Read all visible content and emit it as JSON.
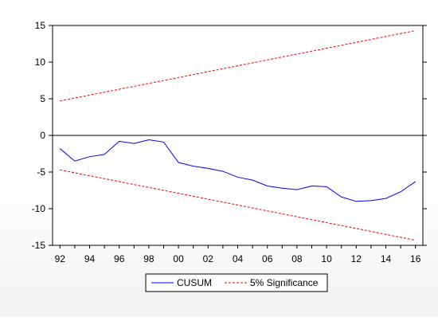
{
  "chart_data": {
    "type": "line",
    "x": [
      1992,
      1993,
      1994,
      1995,
      1996,
      1997,
      1998,
      1999,
      2000,
      2001,
      2002,
      2003,
      2004,
      2005,
      2006,
      2007,
      2008,
      2009,
      2010,
      2011,
      2012,
      2013,
      2014,
      2015,
      2016
    ],
    "xticks": [
      1992,
      1994,
      1996,
      1998,
      2000,
      2002,
      2004,
      2006,
      2008,
      2010,
      2012,
      2014,
      2016
    ],
    "xtick_labels": [
      "92",
      "94",
      "96",
      "98",
      "00",
      "02",
      "04",
      "06",
      "08",
      "10",
      "12",
      "14",
      "16"
    ],
    "xlim": [
      1991.5,
      2016.5
    ],
    "yticks": [
      -15,
      -10,
      -5,
      0,
      5,
      10,
      15
    ],
    "ytick_labels": [
      "-15",
      "-10",
      "-5",
      "0",
      "5",
      "10",
      "15"
    ],
    "ylim": [
      -15,
      15
    ],
    "zero_line": true,
    "grid": false,
    "legend_position": "bottom-center",
    "series": [
      {
        "name": "CUSUM",
        "color": "#0000ff",
        "style": "solid",
        "values": [
          -1.8,
          -3.5,
          -2.9,
          -2.6,
          -0.8,
          -1.1,
          -0.6,
          -0.9,
          -3.7,
          -4.2,
          -4.5,
          -4.9,
          -5.7,
          -6.1,
          -6.9,
          -7.2,
          -7.4,
          -6.9,
          -7.0,
          -8.4,
          -9.0,
          -8.9,
          -8.6,
          -7.7,
          -6.3
        ]
      },
      {
        "name": "5% Significance",
        "color": "#ff0000",
        "style": "dashed",
        "values": [
          4.7,
          5.1,
          5.5,
          5.9,
          6.3,
          6.7,
          7.1,
          7.5,
          7.9,
          8.3,
          8.7,
          9.1,
          9.5,
          9.9,
          10.3,
          10.7,
          11.1,
          11.5,
          11.9,
          12.3,
          12.7,
          13.1,
          13.5,
          13.9,
          14.3
        ]
      },
      {
        "name": "",
        "color": "#ff0000",
        "style": "dashed",
        "values": [
          -4.7,
          -5.1,
          -5.5,
          -5.9,
          -6.3,
          -6.7,
          -7.1,
          -7.5,
          -7.9,
          -8.3,
          -8.7,
          -9.1,
          -9.5,
          -9.9,
          -10.3,
          -10.7,
          -11.1,
          -11.5,
          -11.9,
          -12.3,
          -12.7,
          -13.1,
          -13.5,
          -13.9,
          -14.3
        ]
      }
    ]
  },
  "legend": {
    "cusum_label": "CUSUM",
    "significance_label": "5% Significance"
  }
}
